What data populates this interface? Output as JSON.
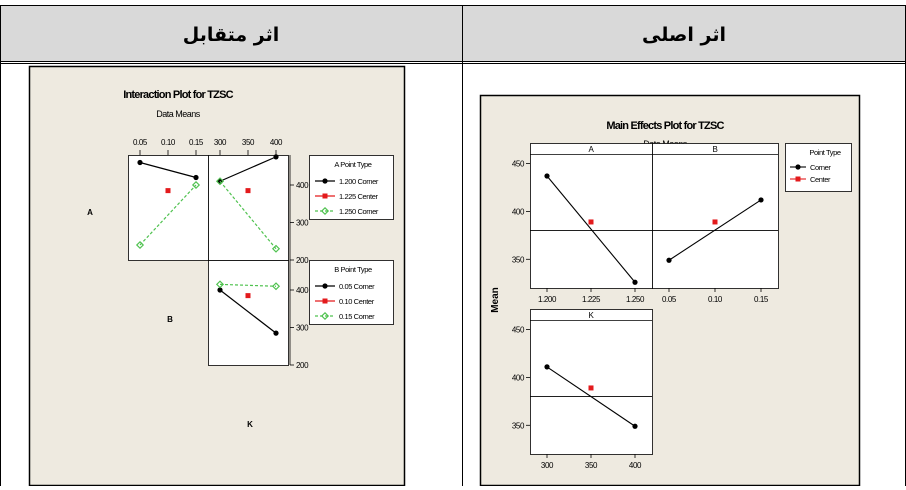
{
  "table": {
    "left_header": "اثر متقابل",
    "right_header": "اثر اصلی"
  },
  "colors": {
    "corner": "#000000",
    "center": "#e31a1c",
    "corner2": "#4fc24f",
    "panel_bg": "#eeeae0"
  },
  "chart_data": [
    {
      "type": "line",
      "title": "Interaction Plot for TZSC",
      "subtitle": "Data Means",
      "factors": [
        "A",
        "B",
        "K"
      ],
      "ylim": [
        200,
        480
      ],
      "yticks": [
        200,
        300,
        400
      ],
      "top_xticks": {
        "B": [
          "0.05",
          "0.10",
          "0.15"
        ],
        "K": [
          "300",
          "350",
          "400"
        ]
      },
      "panels": [
        {
          "row": "A",
          "col": "B",
          "series": [
            {
              "point_type": "1.200 Corner",
              "x": [
                0.05,
                0.15
              ],
              "y": [
                460,
                420
              ]
            },
            {
              "point_type": "1.225 Center",
              "x": [
                0.1
              ],
              "y": [
                385
              ]
            },
            {
              "point_type": "1.250 Corner",
              "x": [
                0.05,
                0.15
              ],
              "y": [
                240,
                400
              ]
            }
          ]
        },
        {
          "row": "A",
          "col": "K",
          "series": [
            {
              "point_type": "1.200 Corner",
              "x": [
                300,
                400
              ],
              "y": [
                410,
                475
              ]
            },
            {
              "point_type": "1.225 Center",
              "x": [
                350
              ],
              "y": [
                385
              ]
            },
            {
              "point_type": "1.250 Corner",
              "x": [
                300,
                400
              ],
              "y": [
                410,
                230
              ]
            }
          ]
        },
        {
          "row": "B",
          "col": "K",
          "series": [
            {
              "point_type": "0.05 Corner",
              "x": [
                300,
                400
              ],
              "y": [
                400,
                285
              ]
            },
            {
              "point_type": "0.10 Center",
              "x": [
                350
              ],
              "y": [
                385
              ]
            },
            {
              "point_type": "0.15 Corner",
              "x": [
                300,
                400
              ],
              "y": [
                415,
                410
              ]
            }
          ]
        }
      ],
      "legends": [
        {
          "title": "A Point Type",
          "entries": [
            "1.200 Corner",
            "1.225 Center",
            "1.250 Corner"
          ]
        },
        {
          "title": "B Point Type",
          "entries": [
            "0.05 Corner",
            "0.10 Center",
            "0.15 Corner"
          ]
        }
      ]
    },
    {
      "type": "line",
      "title": "Main Effects Plot for TZSC",
      "subtitle": "Data Means",
      "ylabel": "Mean",
      "ylim": [
        320,
        460
      ],
      "yticks": [
        350,
        400,
        450
      ],
      "reference_line": 380,
      "legend": {
        "title": "Point Type",
        "entries": [
          "Corner",
          "Center"
        ]
      },
      "panels": [
        {
          "factor": "A",
          "xticks": [
            "1.200",
            "1.225",
            "1.250"
          ],
          "corner_x": [
            1.2,
            1.25
          ],
          "corner_y": [
            437,
            326
          ],
          "center_x": 1.225,
          "center_y": 389,
          "xlim": [
            1.2,
            1.25
          ]
        },
        {
          "factor": "B",
          "xticks": [
            "0.05",
            "0.10",
            "0.15"
          ],
          "corner_x": [
            0.05,
            0.15
          ],
          "corner_y": [
            349,
            412
          ],
          "center_x": 0.1,
          "center_y": 389,
          "xlim": [
            0.05,
            0.15
          ]
        },
        {
          "factor": "K",
          "xticks": [
            "300",
            "350",
            "400"
          ],
          "corner_x": [
            300,
            400
          ],
          "corner_y": [
            411,
            349
          ],
          "center_x": 350,
          "center_y": 389,
          "xlim": [
            300,
            400
          ]
        }
      ]
    }
  ]
}
